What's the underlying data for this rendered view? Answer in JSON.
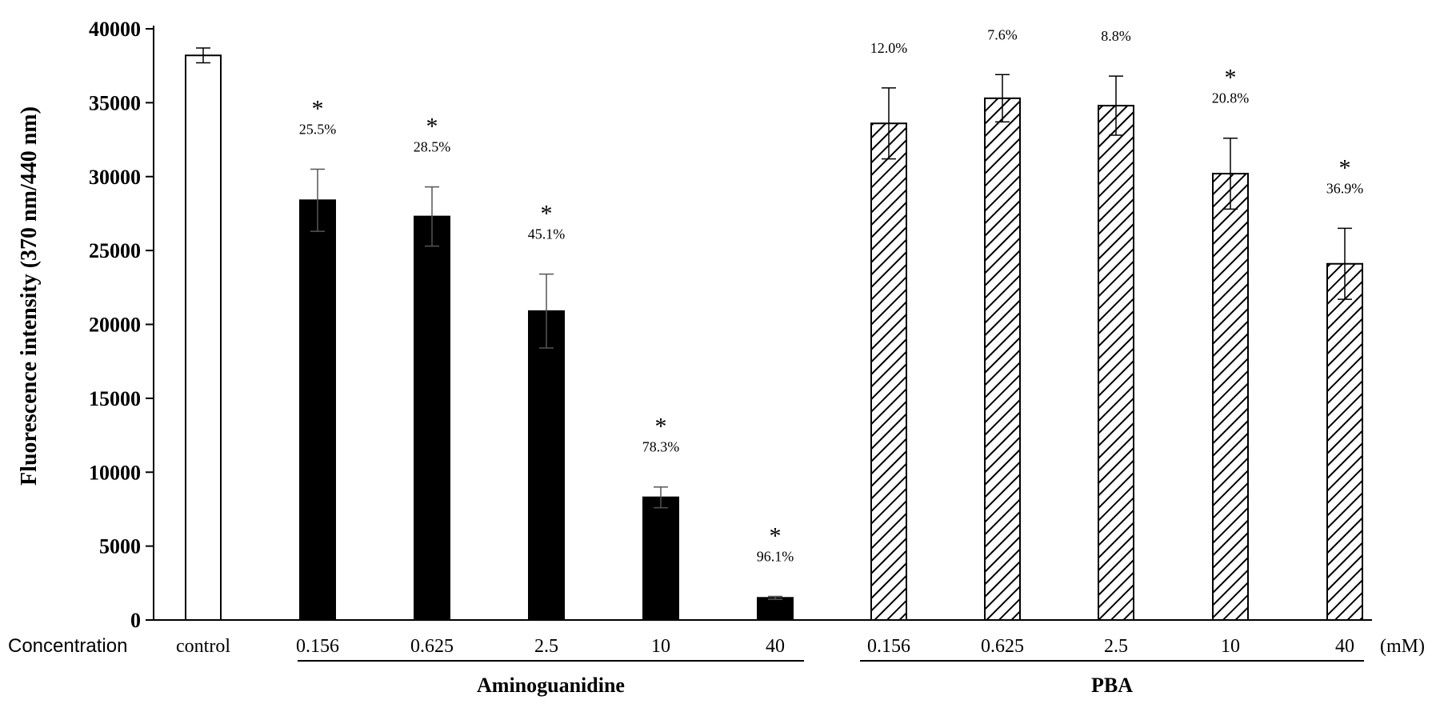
{
  "chart_data": {
    "type": "bar",
    "ylabel": "Fluorescence intensity  (370 nm/440 nm)",
    "ylim": [
      0,
      40000
    ],
    "yticks": [
      "0",
      "5000",
      "10000",
      "15000",
      "20000",
      "25000",
      "30000",
      "35000",
      "40000"
    ],
    "concentration_label": "Concentration",
    "unit_label": "(mM)",
    "groups": [
      {
        "name": "Aminoguanidine",
        "categories": [
          "0.156",
          "0.625",
          "2.5",
          "10",
          "40"
        ]
      },
      {
        "name": "PBA",
        "categories": [
          "0.156",
          "0.625",
          "2.5",
          "10",
          "40"
        ]
      }
    ],
    "bars": [
      {
        "category": "control",
        "group": "",
        "style": "empty",
        "value": 38200,
        "error": 500,
        "significant": false,
        "inhibition": ""
      },
      {
        "category": "0.156",
        "group": "Aminoguanidine",
        "style": "solid",
        "value": 28400,
        "error": 2100,
        "significant": true,
        "inhibition": "25.5%"
      },
      {
        "category": "0.625",
        "group": "Aminoguanidine",
        "style": "solid",
        "value": 27300,
        "error": 2000,
        "significant": true,
        "inhibition": "28.5%"
      },
      {
        "category": "2.5",
        "group": "Aminoguanidine",
        "style": "solid",
        "value": 20900,
        "error": 2500,
        "significant": true,
        "inhibition": "45.1%"
      },
      {
        "category": "10",
        "group": "Aminoguanidine",
        "style": "solid",
        "value": 8300,
        "error": 700,
        "significant": true,
        "inhibition": "78.3%"
      },
      {
        "category": "40",
        "group": "Aminoguanidine",
        "style": "solid",
        "value": 1500,
        "error": 100,
        "significant": true,
        "inhibition": "96.1%"
      },
      {
        "category": "0.156",
        "group": "PBA",
        "style": "hatched",
        "value": 33600,
        "error": 2400,
        "significant": false,
        "inhibition": "12.0%"
      },
      {
        "category": "0.625",
        "group": "PBA",
        "style": "hatched",
        "value": 35300,
        "error": 1600,
        "significant": false,
        "inhibition": "7.6%"
      },
      {
        "category": "2.5",
        "group": "PBA",
        "style": "hatched",
        "value": 34800,
        "error": 2000,
        "significant": false,
        "inhibition": "8.8%"
      },
      {
        "category": "10",
        "group": "PBA",
        "style": "hatched",
        "value": 30200,
        "error": 2400,
        "significant": true,
        "inhibition": "20.8%"
      },
      {
        "category": "40",
        "group": "PBA",
        "style": "hatched",
        "value": 24100,
        "error": 2400,
        "significant": true,
        "inhibition": "36.9%"
      }
    ],
    "significance_marker": "*",
    "colors": {
      "solid": "#000000",
      "empty": "#ffffff",
      "stroke": "#000000"
    }
  }
}
